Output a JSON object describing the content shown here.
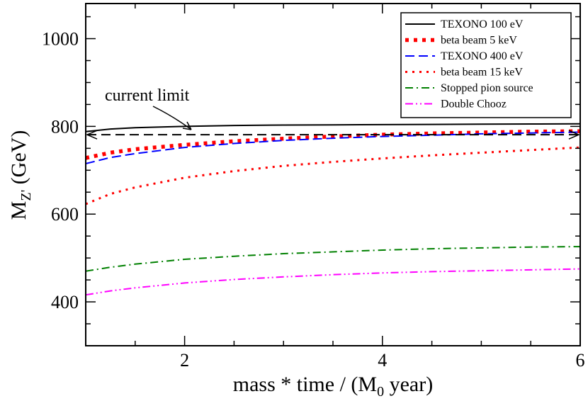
{
  "chart_data": {
    "type": "line",
    "xlabel": "mass * time / (M",
    "xlabel_sub": "0",
    "xlabel_end": " year)",
    "ylabel": "M",
    "ylabel_sub": "Z'",
    "ylabel_end": " (GeV)",
    "xlim": [
      1,
      6
    ],
    "ylim": [
      300,
      1080
    ],
    "x_ticks": [
      2,
      4,
      6
    ],
    "y_ticks": [
      400,
      600,
      800,
      1000
    ],
    "grid": false,
    "legend_position": "top-right",
    "current_limit": {
      "label": "current limit",
      "value": 781
    },
    "series": [
      {
        "name": "TEXONO 100 eV",
        "color": "#000000",
        "dash": "solid",
        "x": [
          1,
          1.25,
          1.5,
          2,
          2.5,
          3,
          3.5,
          4,
          4.5,
          5,
          5.5,
          6
        ],
        "y": [
          788,
          794,
          797,
          800,
          802,
          803,
          803.5,
          804,
          804.5,
          805,
          805.5,
          806
        ]
      },
      {
        "name": "beta beam 5 keV",
        "color": "#ff0000",
        "dash": "bold-dotted",
        "x": [
          1,
          1.25,
          1.5,
          2,
          2.5,
          3,
          3.5,
          4,
          4.5,
          5,
          5.5,
          6
        ],
        "y": [
          728,
          740,
          748,
          758,
          766,
          772,
          777,
          781,
          784,
          786,
          788,
          789
        ]
      },
      {
        "name": "TEXONO 400 eV",
        "color": "#0000ff",
        "dash": "dashed",
        "x": [
          1,
          1.25,
          1.5,
          2,
          2.5,
          3,
          3.5,
          4,
          4.5,
          5,
          5.5,
          6
        ],
        "y": [
          715,
          729,
          738,
          752,
          761,
          768,
          773,
          777,
          780,
          783,
          785,
          787
        ]
      },
      {
        "name": "beta beam 15 keV",
        "color": "#ff0000",
        "dash": "dotted",
        "x": [
          1,
          1.25,
          1.5,
          2,
          2.5,
          3,
          3.5,
          4,
          4.5,
          5,
          5.5,
          6
        ],
        "y": [
          623,
          646,
          661,
          683,
          698,
          710,
          719,
          727,
          734,
          740,
          746,
          752
        ]
      },
      {
        "name": "Stopped pion source",
        "color": "#008000",
        "dash": "dash-dot",
        "x": [
          1,
          1.25,
          1.5,
          2,
          2.5,
          3,
          3.5,
          4,
          4.5,
          5,
          5.5,
          6
        ],
        "y": [
          470,
          479,
          486,
          497,
          504,
          510,
          514,
          518,
          521,
          523,
          525,
          526
        ]
      },
      {
        "name": "Double Chooz",
        "color": "#ff00ff",
        "dash": "dash-dot-dot",
        "x": [
          1,
          1.25,
          1.5,
          2,
          2.5,
          3,
          3.5,
          4,
          4.5,
          5,
          5.5,
          6
        ],
        "y": [
          416,
          425,
          432,
          443,
          451,
          457,
          462,
          466,
          469,
          471,
          473,
          475
        ]
      }
    ]
  }
}
